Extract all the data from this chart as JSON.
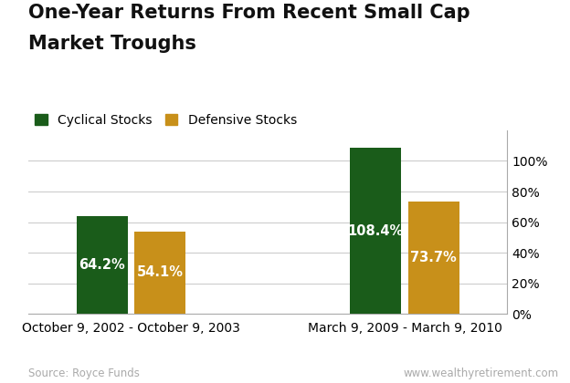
{
  "title_line1": "One-Year Returns From Recent Small Cap",
  "title_line2": "Market Troughs",
  "title_fontsize": 15,
  "groups": [
    "October 9, 2002 - October 9, 2003",
    "March 9, 2009 - March 9, 2010"
  ],
  "series": [
    "Cyclical Stocks",
    "Defensive Stocks"
  ],
  "values": [
    [
      64.2,
      54.1
    ],
    [
      108.4,
      73.7
    ]
  ],
  "bar_colors": [
    "#1a5c1a",
    "#c8901a"
  ],
  "bar_width": 0.3,
  "group_centers": [
    1.0,
    2.6
  ],
  "bar_gap": 0.04,
  "ylim": [
    0,
    120
  ],
  "yticks": [
    0,
    20,
    40,
    60,
    80,
    100
  ],
  "ytick_labels": [
    "0%",
    "20%",
    "40%",
    "60%",
    "80%",
    "100%"
  ],
  "label_fontsize": 10,
  "value_label_fontsize": 10.5,
  "legend_fontsize": 10,
  "source_text": "Source: Royce Funds",
  "source_right_text": "www.wealthyretirement.com",
  "footer_fontsize": 8.5,
  "background_color": "#ffffff",
  "grid_color": "#cccccc",
  "bar_label_color": "#ffffff",
  "spine_color": "#aaaaaa"
}
